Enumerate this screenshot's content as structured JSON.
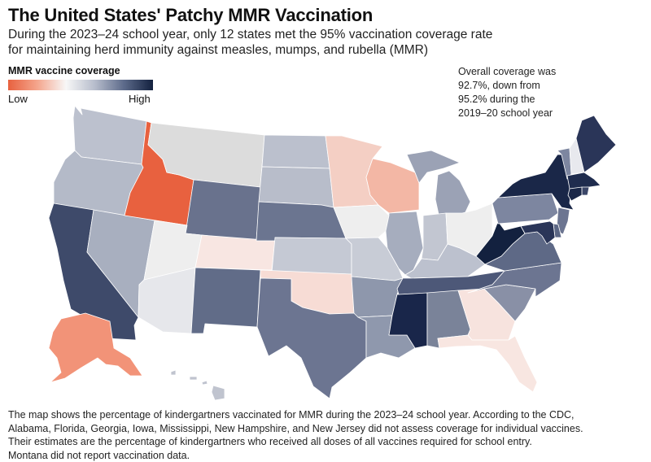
{
  "title": "The United States' Patchy MMR Vaccination",
  "subtitle_lines": [
    "During the 2023–24 school year, only 12 states met the 95% vaccination coverage rate",
    "for maintaining herd immunity against measles, mumps, and rubella (MMR)"
  ],
  "legend": {
    "title": "MMR vaccine coverage",
    "low_label": "Low",
    "high_label": "High"
  },
  "annotation": "Overall coverage was 92.7%, down from 95.2% during the 2019–20 school year",
  "footnote_lines": [
    "The map shows the percentage of kindergartners vaccinated for MMR during the 2023–24 school year. According to the CDC,",
    "Alabama, Florida, Georgia, Iowa, Mississippi, New Hampshire, and New Jersey did not assess coverage for individual vaccines.",
    "Their estimates are the percentage of kindergartners who received all doses of all vaccines required for school entry.",
    "Montana did not report vaccination data."
  ],
  "colors": {
    "lowest": "#e8613f",
    "low": "#f4a58c",
    "mid": "#f7f7f7",
    "high": "#5c6a8a",
    "highest": "#13213f",
    "no_data": "#dcdcdc"
  },
  "states": [
    {
      "id": "WA",
      "color": "#bcc1ce"
    },
    {
      "id": "OR",
      "color": "#b4bac8"
    },
    {
      "id": "CA",
      "color": "#3e4a6a"
    },
    {
      "id": "NV",
      "color": "#a8afbf"
    },
    {
      "id": "ID",
      "color": "#e8613f"
    },
    {
      "id": "MT",
      "color": "#dcdcdc"
    },
    {
      "id": "WY",
      "color": "#69728d"
    },
    {
      "id": "UT",
      "color": "#eeeeee"
    },
    {
      "id": "AZ",
      "color": "#e6e7eb"
    },
    {
      "id": "CO",
      "color": "#f8e6e2"
    },
    {
      "id": "NM",
      "color": "#616c88"
    },
    {
      "id": "ND",
      "color": "#bbc0cd"
    },
    {
      "id": "SD",
      "color": "#b8bdca"
    },
    {
      "id": "NE",
      "color": "#6b7590"
    },
    {
      "id": "KS",
      "color": "#c5c9d4"
    },
    {
      "id": "OK",
      "color": "#f7dcd5"
    },
    {
      "id": "TX",
      "color": "#6c7591"
    },
    {
      "id": "MN",
      "color": "#f4cfc4"
    },
    {
      "id": "IA",
      "color": "#eeeeee"
    },
    {
      "id": "MO",
      "color": "#c8ccd6"
    },
    {
      "id": "AR",
      "color": "#8e97ac"
    },
    {
      "id": "LA",
      "color": "#8f98ad"
    },
    {
      "id": "WI",
      "color": "#f3b7a5"
    },
    {
      "id": "IL",
      "color": "#a6adbe"
    },
    {
      "id": "MI",
      "color": "#9ba2b5"
    },
    {
      "id": "IN",
      "color": "#c2c6d1"
    },
    {
      "id": "OH",
      "color": "#eeeeee"
    },
    {
      "id": "KY",
      "color": "#bcc1ce"
    },
    {
      "id": "TN",
      "color": "#4d5878"
    },
    {
      "id": "MS",
      "color": "#19264a"
    },
    {
      "id": "AL",
      "color": "#7a8399"
    },
    {
      "id": "GA",
      "color": "#f7e3de"
    },
    {
      "id": "FL",
      "color": "#f8e6e1"
    },
    {
      "id": "SC",
      "color": "#8990a6"
    },
    {
      "id": "NC",
      "color": "#6c7591"
    },
    {
      "id": "VA",
      "color": "#5e6986"
    },
    {
      "id": "WV",
      "color": "#13213f"
    },
    {
      "id": "PA",
      "color": "#7d86a0"
    },
    {
      "id": "NY",
      "color": "#1a2748"
    },
    {
      "id": "VT",
      "color": "#7d86a0"
    },
    {
      "id": "NH",
      "color": "#e8e9ee"
    },
    {
      "id": "ME",
      "color": "#2a3558"
    },
    {
      "id": "MA",
      "color": "#1f2c4e"
    },
    {
      "id": "RI",
      "color": "#3b4668"
    },
    {
      "id": "CT",
      "color": "#1a2748"
    },
    {
      "id": "NJ",
      "color": "#6c7591"
    },
    {
      "id": "DE",
      "color": "#5c6785"
    },
    {
      "id": "MD",
      "color": "#2a3558"
    },
    {
      "id": "AK",
      "color": "#f29378"
    },
    {
      "id": "HI",
      "color": "#c0c4cf"
    }
  ]
}
